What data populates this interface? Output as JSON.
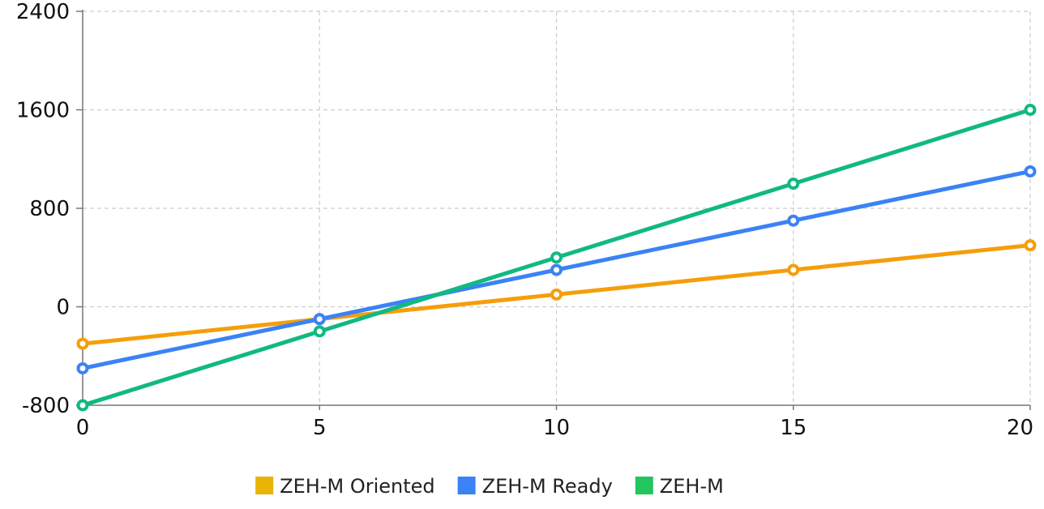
{
  "chart_data": {
    "type": "line",
    "title": "",
    "xlabel": "",
    "ylabel": "",
    "x": [
      0,
      5,
      10,
      15,
      20
    ],
    "xlim": [
      0,
      20
    ],
    "ylim": [
      -800,
      2400
    ],
    "xticks": [
      "0",
      "5",
      "10",
      "15",
      "20"
    ],
    "yticks": [
      "-800",
      "0",
      "800",
      "1600",
      "2400"
    ],
    "grid": true,
    "legend_position": "bottom-center",
    "series": [
      {
        "name": "ZEH-M Oriented",
        "color": "#F59E0B",
        "legend_color": "#EAB308",
        "values": [
          -300,
          -100,
          100,
          300,
          500
        ]
      },
      {
        "name": "ZEH-M Ready",
        "color": "#3B82F6",
        "legend_color": "#3B82F6",
        "values": [
          -500,
          -100,
          300,
          700,
          1100
        ]
      },
      {
        "name": "ZEH-M",
        "color": "#10B981",
        "legend_color": "#22C55E",
        "values": [
          -800,
          -200,
          400,
          1000,
          1600
        ]
      }
    ]
  }
}
